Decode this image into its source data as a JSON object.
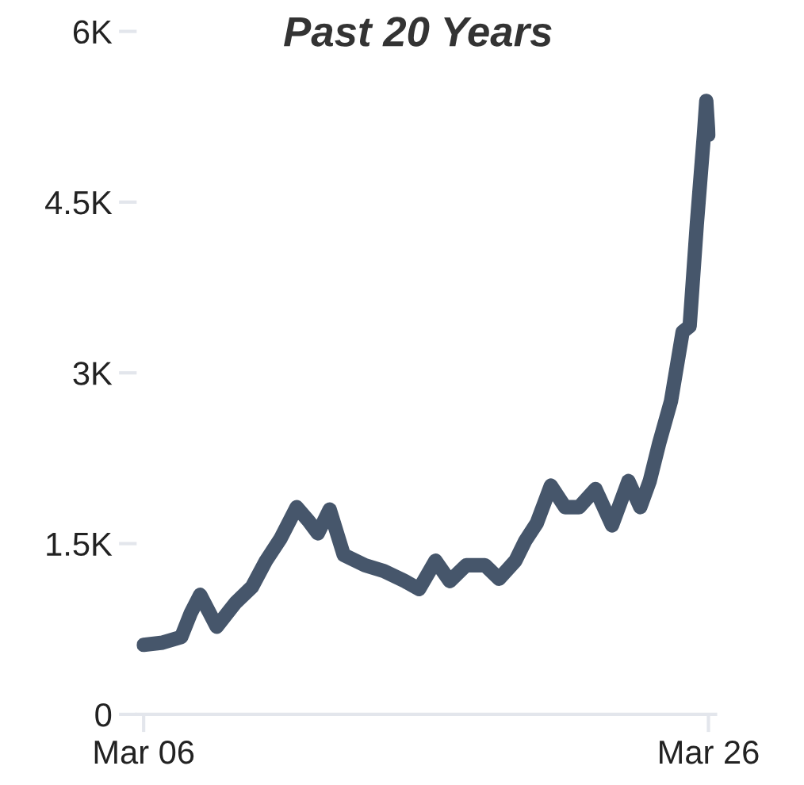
{
  "chart_data": {
    "type": "line",
    "title": "Past 20 Years",
    "x": [
      "2006-03",
      "2006-11",
      "2007-07",
      "2007-11",
      "2008-03",
      "2008-10",
      "2009-06",
      "2010-01",
      "2010-07",
      "2011-01",
      "2011-08",
      "2012-01",
      "2012-05",
      "2012-10",
      "2013-04",
      "2014-01",
      "2014-09",
      "2015-06",
      "2015-12",
      "2016-07",
      "2017-01",
      "2017-08",
      "2018-04",
      "2018-10",
      "2019-05",
      "2019-09",
      "2020-02",
      "2020-08",
      "2021-02",
      "2021-08",
      "2022-03",
      "2022-10",
      "2023-05",
      "2023-10",
      "2024-02",
      "2024-06",
      "2024-11",
      "2025-04",
      "2025-07",
      "2025-10",
      "2026-01",
      "2026-02",
      "2026-03"
    ],
    "series": [
      {
        "color": "#46566b",
        "values": [
          610,
          630,
          680,
          890,
          1050,
          770,
          980,
          1120,
          1350,
          1540,
          1820,
          1700,
          1590,
          1800,
          1400,
          1310,
          1260,
          1170,
          1100,
          1350,
          1170,
          1310,
          1310,
          1190,
          1350,
          1520,
          1680,
          2010,
          1820,
          1820,
          1980,
          1660,
          2050,
          1820,
          2050,
          2380,
          2750,
          3360,
          3410,
          4300,
          5090,
          5390,
          5090
        ]
      }
    ],
    "xlim": [
      "2005-12",
      "2026-06"
    ],
    "xticks": [
      {
        "value": "2006-03",
        "label": "Mar 06"
      },
      {
        "value": "2026-03",
        "label": "Mar 26"
      }
    ],
    "ylim": [
      0,
      6000
    ],
    "yticks": [
      0,
      {
        "value": 1500,
        "label": "1.5K"
      },
      {
        "value": 3000,
        "label": "3K"
      },
      {
        "value": 4500,
        "label": "4.5K"
      },
      {
        "value": 6000,
        "label": "6K"
      }
    ],
    "grid": false,
    "legend": false,
    "marker": "none",
    "line_style": "solid"
  }
}
